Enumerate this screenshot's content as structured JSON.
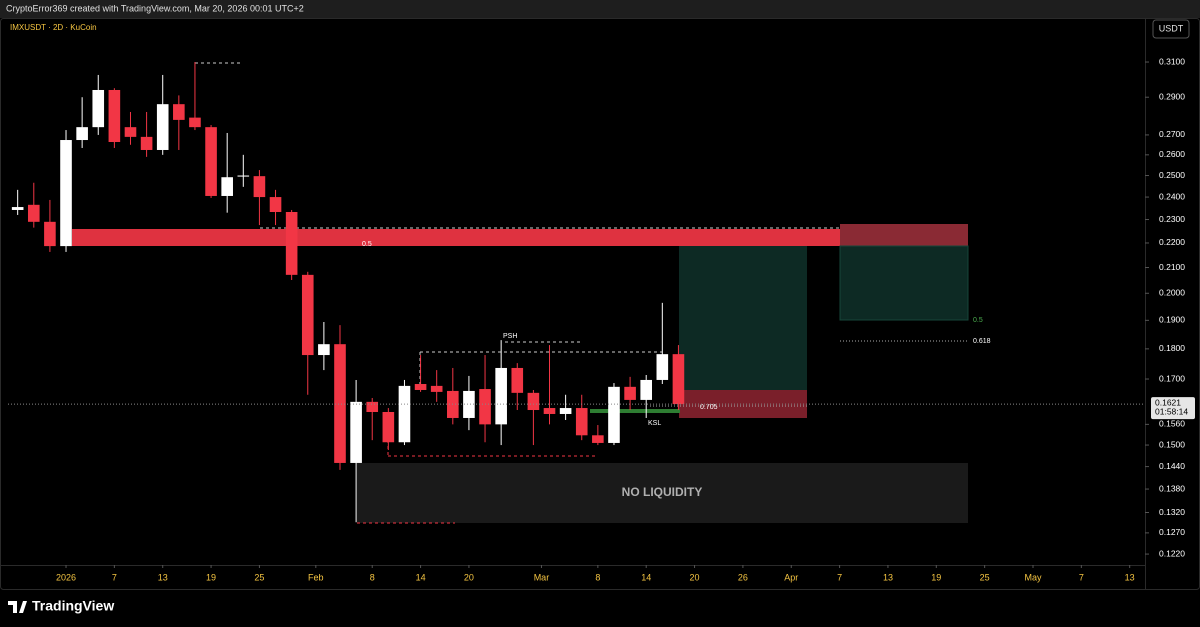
{
  "header": "CryptoError369 created with TradingView.com, Mar 20, 2026 00:01 UTC+2",
  "brand": "TradingView",
  "chart_data": {
    "type": "candlestick",
    "title": "IMXUSDT · 2D · KuCoin",
    "currency": "USDT",
    "log_scale": true,
    "grid": false,
    "up_color": "#ffffff",
    "down_color": "#f23645",
    "x": [
      -6,
      -4,
      -2,
      0,
      2,
      4,
      6,
      8,
      10,
      12,
      14,
      16,
      18,
      20,
      22,
      24,
      26,
      28,
      30,
      32,
      34,
      36,
      38,
      40,
      42,
      44,
      46,
      48,
      50,
      52,
      54,
      56,
      58,
      60,
      62,
      64,
      66,
      68,
      70,
      72,
      74,
      76
    ],
    "open": [
      0.2342,
      0.2365,
      0.229,
      0.2187,
      0.2674,
      0.274,
      0.294,
      0.274,
      0.269,
      0.2624,
      0.2862,
      0.279,
      0.274,
      0.2405,
      0.2495,
      0.2497,
      0.24,
      0.2333,
      0.2071,
      0.1779,
      0.1816,
      0.145,
      0.1628,
      0.1597,
      0.1508,
      0.1684,
      0.1678,
      0.1662,
      0.1579,
      0.1668,
      0.156,
      0.1736,
      0.1656,
      0.1609,
      0.1591,
      0.1609,
      0.1528,
      0.1506,
      0.1675,
      0.1634,
      0.1697,
      0.1782
    ],
    "high": [
      0.2433,
      0.2466,
      0.2387,
      0.2725,
      0.29,
      0.3025,
      0.295,
      0.282,
      0.282,
      0.3025,
      0.291,
      0.31,
      0.2751,
      0.271,
      0.26,
      0.2526,
      0.2433,
      0.2342,
      0.2083,
      0.1894,
      0.1883,
      0.1697,
      0.164,
      0.1609,
      0.1697,
      0.1779,
      0.1729,
      0.1736,
      0.171,
      0.1779,
      0.183,
      0.1752,
      0.1665,
      0.1813,
      0.165,
      0.165,
      0.1558,
      0.1687,
      0.1707,
      0.1713,
      0.1964,
      0.1813
    ],
    "low": [
      0.232,
      0.2265,
      0.2163,
      0.2163,
      0.2634,
      0.27,
      0.2634,
      0.265,
      0.259,
      0.26,
      0.2624,
      0.2725,
      0.2396,
      0.233,
      0.2447,
      0.2276,
      0.2276,
      0.2051,
      0.165,
      0.1729,
      0.1431,
      0.1296,
      0.1514,
      0.1486,
      0.15,
      0.1659,
      0.1628,
      0.156,
      0.1543,
      0.1508,
      0.15,
      0.1603,
      0.15,
      0.156,
      0.1573,
      0.1514,
      0.15,
      0.15,
      0.1603,
      0.1579,
      0.1684,
      0.1603
    ],
    "close": [
      0.2355,
      0.229,
      0.2187,
      0.2674,
      0.274,
      0.294,
      0.2664,
      0.269,
      0.2624,
      0.2862,
      0.2778,
      0.274,
      0.2405,
      0.2492,
      0.25,
      0.24,
      0.2333,
      0.2071,
      0.1779,
      0.1816,
      0.145,
      0.1628,
      0.1597,
      0.1508,
      0.1678,
      0.1665,
      0.1659,
      0.1579,
      0.1662,
      0.156,
      0.1736,
      0.1656,
      0.1603,
      0.1591,
      0.1609,
      0.1528,
      0.1506,
      0.1675,
      0.1634,
      0.1697,
      0.1782,
      0.1621
    ],
    "xlim": [
      -7.2,
      133.9
    ],
    "xticks": [
      {
        "value": 0,
        "label": "2026"
      },
      {
        "value": 6,
        "label": "7"
      },
      {
        "value": 12,
        "label": "13"
      },
      {
        "value": 18,
        "label": "19"
      },
      {
        "value": 24,
        "label": "25"
      },
      {
        "value": 31,
        "label": "Feb"
      },
      {
        "value": 38,
        "label": "8"
      },
      {
        "value": 44,
        "label": "14"
      },
      {
        "value": 50,
        "label": "20"
      },
      {
        "value": 59,
        "label": "Mar"
      },
      {
        "value": 66,
        "label": "8"
      },
      {
        "value": 72,
        "label": "14"
      },
      {
        "value": 78,
        "label": "20"
      },
      {
        "value": 84,
        "label": "26"
      },
      {
        "value": 90,
        "label": "Apr"
      },
      {
        "value": 96,
        "label": "7"
      },
      {
        "value": 102,
        "label": "13"
      },
      {
        "value": 108,
        "label": "19"
      },
      {
        "value": 114,
        "label": "25"
      },
      {
        "value": 120,
        "label": "May"
      },
      {
        "value": 126,
        "label": "7"
      },
      {
        "value": 132,
        "label": "13"
      }
    ],
    "ylim": [
      0.1195,
      0.3357
    ],
    "yticks": [
      {
        "value": 0.31,
        "label": "0.3100"
      },
      {
        "value": 0.29,
        "label": "0.2900"
      },
      {
        "value": 0.27,
        "label": "0.2700"
      },
      {
        "value": 0.26,
        "label": "0.2600"
      },
      {
        "value": 0.25,
        "label": "0.2500"
      },
      {
        "value": 0.24,
        "label": "0.2400"
      },
      {
        "value": 0.23,
        "label": "0.2300"
      },
      {
        "value": 0.22,
        "label": "0.2200"
      },
      {
        "value": 0.21,
        "label": "0.2100"
      },
      {
        "value": 0.2,
        "label": "0.2000"
      },
      {
        "value": 0.19,
        "label": "0.1900"
      },
      {
        "value": 0.18,
        "label": "0.1800"
      },
      {
        "value": 0.17,
        "label": "0.1700"
      },
      {
        "value": 0.156,
        "label": "0.1560"
      },
      {
        "value": 0.15,
        "label": "0.1500"
      },
      {
        "value": 0.144,
        "label": "0.1440"
      },
      {
        "value": 0.138,
        "label": "0.1380"
      },
      {
        "value": 0.132,
        "label": "0.1320"
      },
      {
        "value": 0.127,
        "label": "0.1270"
      },
      {
        "value": 0.122,
        "label": "0.1220"
      }
    ],
    "last_price": 0.1621,
    "countdown": "01:58:14",
    "annotations": [
      "0.5",
      "PSH",
      "0.705",
      "KSL",
      "0.5",
      "0.618",
      "NO LIQUIDITY"
    ]
  }
}
